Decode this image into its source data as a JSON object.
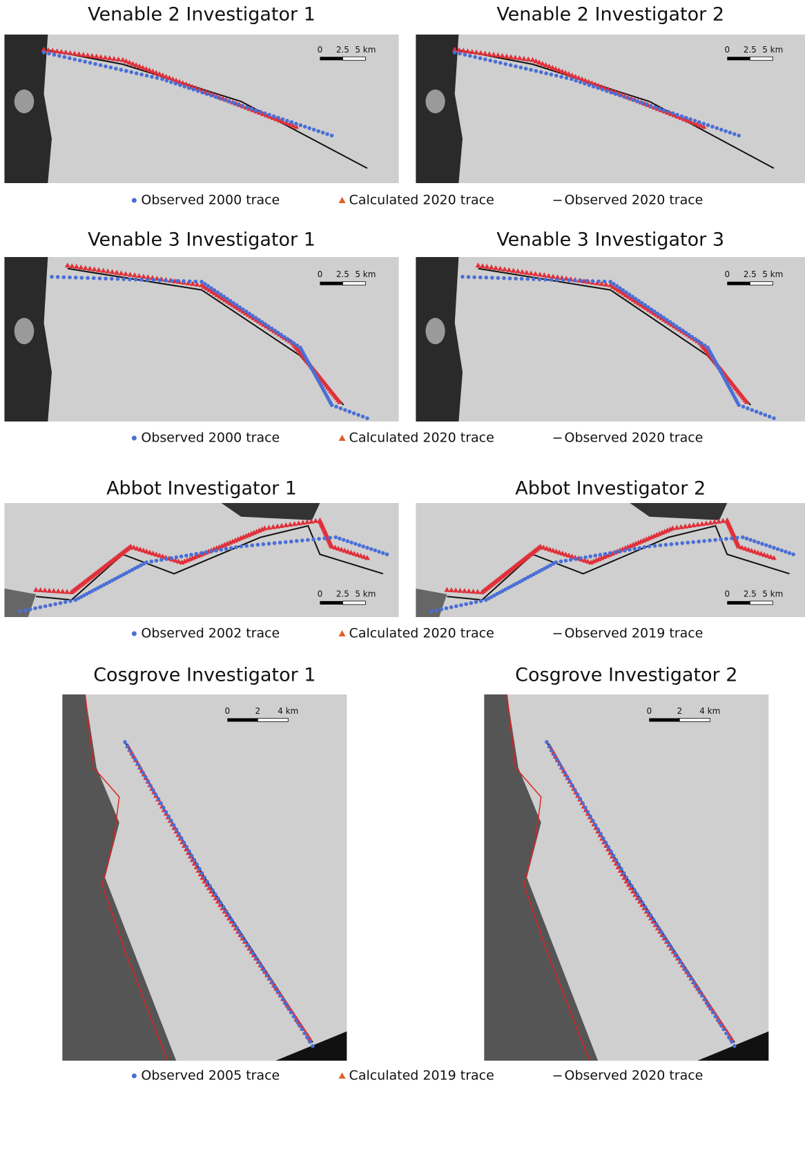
{
  "rows": [
    {
      "panels": [
        {
          "title": "Venable 2 Investigator 1",
          "scale": [
            "0",
            "2.5",
            "5 km"
          ]
        },
        {
          "title": "Venable 2 Investigator 2",
          "scale": [
            "0",
            "2.5",
            "5 km"
          ]
        }
      ],
      "legend": [
        "Observed 2000 trace",
        "Calculated 2020 trace",
        "Observed 2020 trace"
      ]
    },
    {
      "panels": [
        {
          "title": "Venable 3 Investigator 1",
          "scale": [
            "0",
            "2.5",
            "5 km"
          ]
        },
        {
          "title": "Venable 3 Investigator 3",
          "scale": [
            "0",
            "2.5",
            "5 km"
          ]
        }
      ],
      "legend": [
        "Observed 2000 trace",
        "Calculated 2020 trace",
        "Observed 2020 trace"
      ]
    },
    {
      "panels": [
        {
          "title": "Abbot Investigator 1",
          "scale": [
            "0",
            "2.5",
            "5 km"
          ]
        },
        {
          "title": "Abbot Investigator 2",
          "scale": [
            "0",
            "2.5",
            "5 km"
          ]
        }
      ],
      "legend": [
        "Observed 2002 trace",
        "Calculated 2020 trace",
        "Observed 2019 trace"
      ]
    },
    {
      "panels": [
        {
          "title": "Cosgrove Investigator 1",
          "scale": [
            "0",
            "2",
            "4 km"
          ]
        },
        {
          "title": "Cosgrove Investigator 2",
          "scale": [
            "0",
            "2",
            "4 km"
          ]
        }
      ],
      "legend": [
        "Observed 2005 trace",
        "Calculated 2019 trace",
        "Observed 2020 trace"
      ]
    }
  ]
}
